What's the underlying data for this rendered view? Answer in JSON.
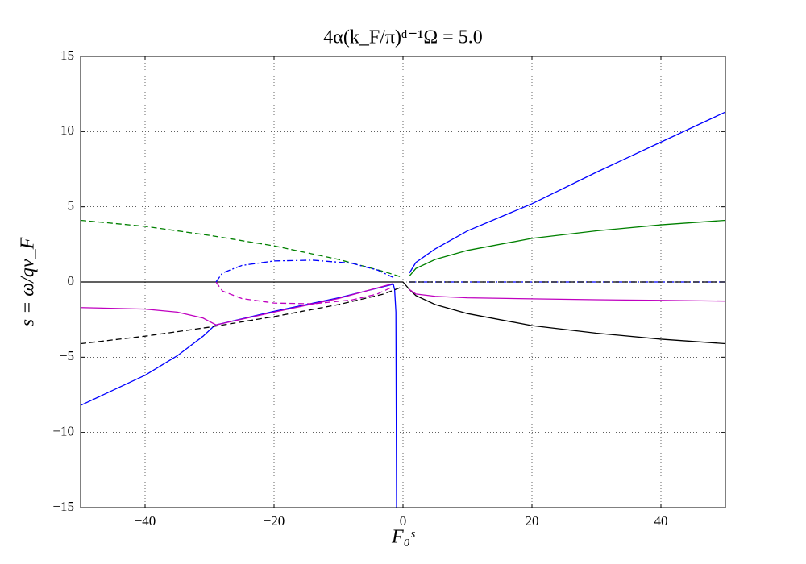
{
  "chart_data": {
    "type": "line",
    "title": "4α(k_F/π)ᵈ⁻¹Ω = 5.0",
    "x_label": "F₀ˢ",
    "y_label": "s = ω/qv_F",
    "xlim": [
      -50,
      50
    ],
    "ylim": [
      -15,
      15
    ],
    "xticks": [
      {
        "value": -40,
        "label": "−40"
      },
      {
        "value": -20,
        "label": "−20"
      },
      0,
      20,
      40
    ],
    "yticks": [
      {
        "value": -15,
        "label": "−15"
      },
      {
        "value": -10,
        "label": "−10"
      },
      {
        "value": -5,
        "label": "−5"
      },
      0,
      5,
      10,
      15
    ],
    "grid": true,
    "series": [
      {
        "color": "#0000ff",
        "dash": "solid",
        "x": [
          1,
          2,
          5,
          10,
          20,
          30,
          40,
          50
        ],
        "values": [
          0.6,
          1.3,
          2.2,
          3.4,
          5.2,
          7.3,
          9.3,
          11.3
        ]
      },
      {
        "color": "#008000",
        "dash": "solid",
        "x": [
          1,
          2,
          5,
          10,
          20,
          30,
          40,
          50
        ],
        "values": [
          0.4,
          0.9,
          1.5,
          2.1,
          2.9,
          3.4,
          3.8,
          4.1
        ]
      },
      {
        "color": "#000000",
        "dash": "solid",
        "x": [
          0,
          1,
          2,
          5,
          10,
          20,
          30,
          40,
          50
        ],
        "values": [
          0,
          -0.5,
          -0.9,
          -1.5,
          -2.1,
          -2.9,
          -3.4,
          -3.8,
          -4.1
        ]
      },
      {
        "color": "#bf00bf",
        "dash": "solid",
        "x": [
          1,
          2,
          5,
          10,
          20,
          30,
          40,
          50
        ],
        "values": [
          -0.5,
          -0.8,
          -0.95,
          -1.05,
          -1.12,
          -1.18,
          -1.22,
          -1.27
        ]
      },
      {
        "color": "#000000",
        "dash": "solid",
        "x": [
          -50,
          0
        ],
        "values": [
          0,
          0
        ]
      },
      {
        "color": "#0000ff",
        "dash": "dashdot",
        "x": [
          1,
          50
        ],
        "values": [
          0,
          0
        ]
      },
      {
        "color": "#000000",
        "dash": "dashed",
        "x": [
          1,
          50
        ],
        "values": [
          0,
          0
        ]
      },
      {
        "color": "#0000ff",
        "dash": "solid",
        "x": [
          -50,
          -40,
          -35,
          -31,
          -29.5,
          -29,
          -20,
          -10,
          -1.5,
          -1.3,
          -1.1,
          -1
        ],
        "values": [
          -8.2,
          -6.2,
          -4.9,
          -3.6,
          -3.0,
          -2.85,
          -1.95,
          -1.05,
          -0.15,
          -0.5,
          -2,
          -15
        ]
      },
      {
        "color": "#bf00bf",
        "dash": "solid",
        "x": [
          -50,
          -40,
          -35,
          -31,
          -29,
          -20,
          -10,
          -1.5
        ],
        "values": [
          -1.7,
          -1.8,
          -2.0,
          -2.4,
          -2.85,
          -2.0,
          -1.1,
          -0.1
        ]
      },
      {
        "color": "#000000",
        "dash": "dashed",
        "x": [
          -50,
          -40,
          -30,
          -20,
          -10,
          -3,
          0
        ],
        "values": [
          -4.1,
          -3.6,
          -3.0,
          -2.3,
          -1.5,
          -0.8,
          -0.3
        ]
      },
      {
        "color": "#008000",
        "dash": "dashed",
        "x": [
          -50,
          -40,
          -30,
          -20,
          -10,
          -3,
          0
        ],
        "values": [
          4.1,
          3.7,
          3.1,
          2.4,
          1.5,
          0.7,
          0.3
        ]
      },
      {
        "color": "#bf00bf",
        "dash": "dashed",
        "x": [
          -29,
          -28,
          -25,
          -20,
          -14,
          -8,
          -4,
          -1.5
        ],
        "values": [
          0,
          -0.6,
          -1.1,
          -1.4,
          -1.45,
          -1.2,
          -0.8,
          -0.3
        ]
      },
      {
        "color": "#0000ff",
        "dash": "dashdot",
        "x": [
          -29,
          -28,
          -25,
          -20,
          -14,
          -8,
          -4,
          -1.5
        ],
        "values": [
          0,
          0.6,
          1.1,
          1.4,
          1.45,
          1.25,
          0.8,
          0.3
        ]
      }
    ]
  }
}
